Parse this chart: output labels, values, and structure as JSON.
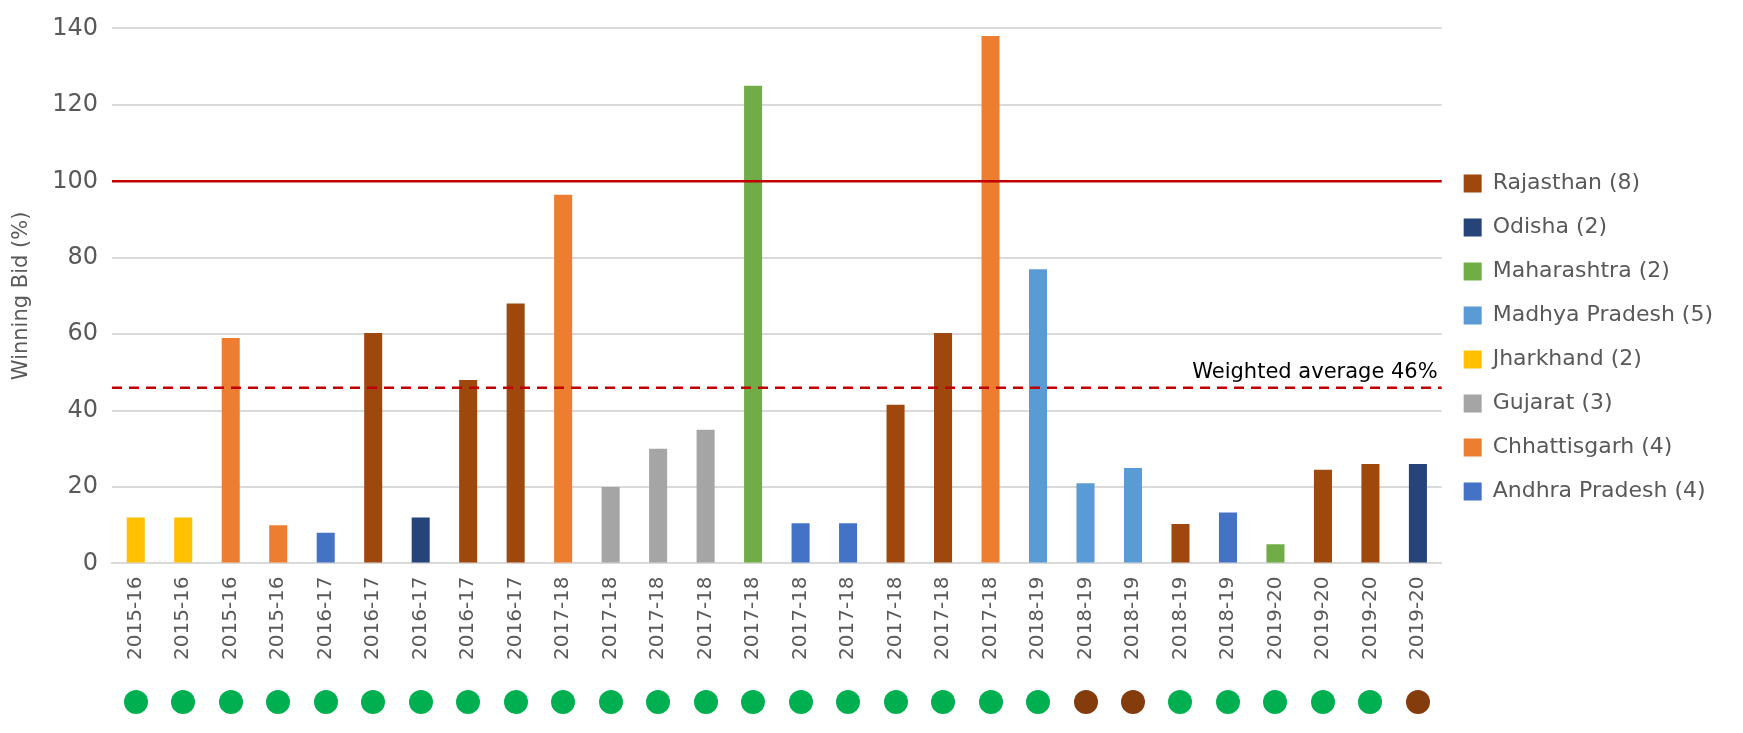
{
  "chart_data": {
    "type": "bar",
    "ylabel": "Winning Bid (%)",
    "categories": [
      "2015-16",
      "2015-16",
      "2015-16",
      "2015-16",
      "2016-17",
      "2016-17",
      "2016-17",
      "2016-17",
      "2016-17",
      "2017-18",
      "2017-18",
      "2017-18",
      "2017-18",
      "2017-18",
      "2017-18",
      "2017-18",
      "2017-18",
      "2017-18",
      "2017-18",
      "2018-19",
      "2018-19",
      "2018-19",
      "2018-19",
      "2018-19",
      "2019-20",
      "2019-20",
      "2019-20",
      "2019-20"
    ],
    "series": [
      {
        "name": "Rajasthan (8)",
        "color": "#9e480e",
        "values": [
          null,
          null,
          null,
          null,
          null,
          60.3,
          null,
          48,
          68,
          null,
          null,
          null,
          null,
          null,
          null,
          null,
          41.5,
          60.3,
          null,
          null,
          null,
          null,
          10.3,
          null,
          null,
          24.5,
          26,
          null
        ]
      },
      {
        "name": "Odisha (2)",
        "color": "#264478",
        "values": [
          null,
          null,
          null,
          null,
          null,
          null,
          12,
          null,
          null,
          null,
          null,
          null,
          null,
          null,
          null,
          null,
          null,
          null,
          null,
          null,
          null,
          null,
          null,
          null,
          null,
          null,
          null,
          26
        ]
      },
      {
        "name": "Maharashtra (2)",
        "color": "#70ad47",
        "values": [
          null,
          null,
          null,
          null,
          null,
          null,
          null,
          null,
          null,
          null,
          null,
          null,
          null,
          125,
          null,
          null,
          null,
          null,
          null,
          null,
          null,
          null,
          null,
          null,
          5,
          null,
          null,
          null
        ]
      },
      {
        "name": "Madhya Pradesh (5)",
        "color": "#5b9bd5",
        "values": [
          null,
          null,
          null,
          null,
          null,
          null,
          null,
          null,
          null,
          null,
          null,
          null,
          null,
          null,
          null,
          null,
          null,
          null,
          null,
          77,
          21,
          25,
          null,
          null,
          null,
          null,
          null,
          null
        ]
      },
      {
        "name": "Jharkhand (2)",
        "color": "#ffc000",
        "values": [
          12,
          12,
          null,
          null,
          null,
          null,
          null,
          null,
          null,
          null,
          null,
          null,
          null,
          null,
          null,
          null,
          null,
          null,
          null,
          null,
          null,
          null,
          null,
          null,
          null,
          null,
          null,
          null
        ]
      },
      {
        "name": "Gujarat (3)",
        "color": "#a5a5a5",
        "values": [
          null,
          null,
          null,
          null,
          null,
          null,
          null,
          null,
          null,
          null,
          20,
          30,
          35,
          null,
          null,
          null,
          null,
          null,
          null,
          null,
          null,
          null,
          null,
          null,
          null,
          null,
          null,
          null
        ]
      },
      {
        "name": "Chhattisgarh (4)",
        "color": "#ed7d31",
        "values": [
          null,
          null,
          59,
          10,
          null,
          null,
          null,
          null,
          null,
          96.5,
          null,
          null,
          null,
          null,
          null,
          null,
          null,
          null,
          138,
          null,
          null,
          null,
          null,
          null,
          null,
          null,
          null,
          null
        ]
      },
      {
        "name": "Andhra Pradesh (4)",
        "color": "#4472c4",
        "values": [
          null,
          null,
          null,
          null,
          8,
          null,
          null,
          null,
          null,
          null,
          null,
          null,
          null,
          null,
          10.5,
          10.5,
          null,
          null,
          null,
          null,
          null,
          null,
          null,
          13.3,
          null,
          null,
          null,
          null
        ]
      }
    ],
    "ylim": [
      0,
      140
    ],
    "yticks": [
      0,
      20,
      40,
      60,
      80,
      100,
      120,
      140
    ],
    "grid": "y",
    "legend": "right",
    "ref_lines": [
      {
        "axis": "y",
        "value": 100,
        "label": null,
        "color": "#c00000",
        "line_style": "solid"
      },
      {
        "axis": "y",
        "value": 46,
        "label": "Weighted average 46%",
        "color": "#c00000",
        "line_style": "dashed"
      }
    ]
  }
}
